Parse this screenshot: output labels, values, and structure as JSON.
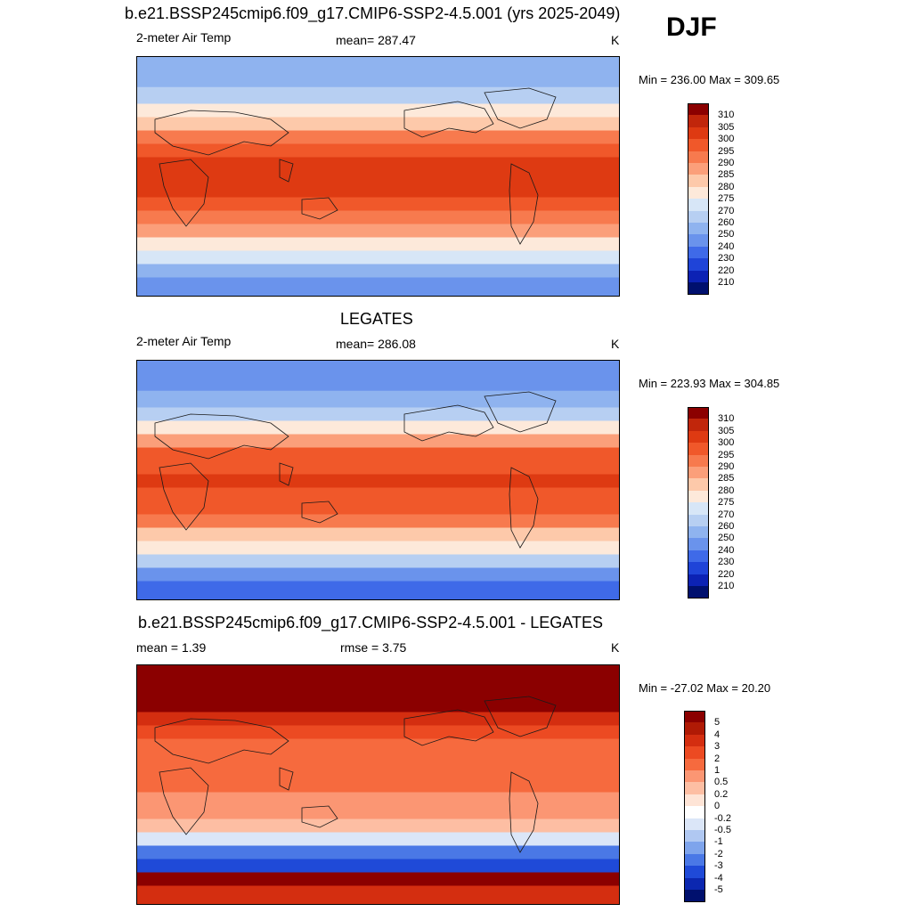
{
  "season": "DJF",
  "panels": [
    {
      "title": "b.e21.BSSP245cmip6.f09_g17.CMIP6-SSP2-4.5.001 (yrs 2025-2049)",
      "left_label": "2-meter Air Temp",
      "center_label": "mean= 287.47",
      "right_label": "K",
      "minmax": "Min = 236.00 Max = 309.65"
    },
    {
      "title": "LEGATES",
      "left_label": "2-meter Air Temp",
      "center_label": "mean= 286.08",
      "right_label": "K",
      "minmax": "Min = 223.93 Max = 304.85"
    },
    {
      "title": "b.e21.BSSP245cmip6.f09_g17.CMIP6-SSP2-4.5.001 - LEGATES",
      "left_label": "mean =   1.39",
      "center_label": "rmse =   3.75",
      "right_label": "K",
      "minmax": "Min = -27.02 Max =  20.20"
    }
  ],
  "chart_data": [
    {
      "type": "heatmap",
      "title": "b.e21.BSSP245cmip6.f09_g17.CMIP6-SSP2-4.5.001 (yrs 2025-2049)",
      "variable": "2-meter Air Temp",
      "units": "K",
      "mean": 287.47,
      "min": 236.0,
      "max": 309.65,
      "colorbar_levels": [
        "310",
        "305",
        "300",
        "295",
        "290",
        "285",
        "280",
        "275",
        "270",
        "260",
        "250",
        "240",
        "230",
        "220",
        "210"
      ],
      "colorbar_colors": [
        "#8b0000",
        "#c1260b",
        "#de3a12",
        "#f0582a",
        "#f77a4e",
        "#fb9f7a",
        "#fdc9aa",
        "#fde9da",
        "#d7e6f7",
        "#b7cff2",
        "#8fb3ef",
        "#6a93ec",
        "#3f6ae8",
        "#1f44d8",
        "#0c22b4",
        "#00106e"
      ],
      "latitude_bands": [
        {
          "lat": 75,
          "value": 258
        },
        {
          "lat": 60,
          "value": 266
        },
        {
          "lat": 50,
          "value": 275
        },
        {
          "lat": 40,
          "value": 282
        },
        {
          "lat": 30,
          "value": 291
        },
        {
          "lat": 20,
          "value": 297
        },
        {
          "lat": 10,
          "value": 300
        },
        {
          "lat": 0,
          "value": 301
        },
        {
          "lat": -10,
          "value": 300
        },
        {
          "lat": -20,
          "value": 297
        },
        {
          "lat": -30,
          "value": 292
        },
        {
          "lat": -40,
          "value": 285
        },
        {
          "lat": -50,
          "value": 277
        },
        {
          "lat": -60,
          "value": 270
        },
        {
          "lat": -70,
          "value": 252
        },
        {
          "lat": -80,
          "value": 242
        }
      ]
    },
    {
      "type": "heatmap",
      "title": "LEGATES",
      "variable": "2-meter Air Temp",
      "units": "K",
      "mean": 286.08,
      "min": 223.93,
      "max": 304.85,
      "colorbar_levels": [
        "310",
        "305",
        "300",
        "295",
        "290",
        "285",
        "280",
        "275",
        "270",
        "260",
        "250",
        "240",
        "230",
        "220",
        "210"
      ],
      "colorbar_colors": [
        "#8b0000",
        "#c1260b",
        "#de3a12",
        "#f0582a",
        "#f77a4e",
        "#fb9f7a",
        "#fdc9aa",
        "#fde9da",
        "#d7e6f7",
        "#b7cff2",
        "#8fb3ef",
        "#6a93ec",
        "#3f6ae8",
        "#1f44d8",
        "#0c22b4",
        "#00106e"
      ],
      "latitude_bands": [
        {
          "lat": 75,
          "value": 248
        },
        {
          "lat": 60,
          "value": 258
        },
        {
          "lat": 50,
          "value": 268
        },
        {
          "lat": 40,
          "value": 278
        },
        {
          "lat": 30,
          "value": 289
        },
        {
          "lat": 20,
          "value": 296
        },
        {
          "lat": 10,
          "value": 299
        },
        {
          "lat": 0,
          "value": 300
        },
        {
          "lat": -10,
          "value": 299
        },
        {
          "lat": -20,
          "value": 296
        },
        {
          "lat": -30,
          "value": 291
        },
        {
          "lat": -40,
          "value": 284
        },
        {
          "lat": -50,
          "value": 276
        },
        {
          "lat": -60,
          "value": 268
        },
        {
          "lat": -70,
          "value": 248
        },
        {
          "lat": -80,
          "value": 235
        }
      ]
    },
    {
      "type": "heatmap",
      "title": "b.e21.BSSP245cmip6.f09_g17.CMIP6-SSP2-4.5.001 - LEGATES",
      "units": "K",
      "mean": 1.39,
      "rmse": 3.75,
      "min": -27.02,
      "max": 20.2,
      "colorbar_levels": [
        "5",
        "4",
        "3",
        "2",
        "1",
        "0.5",
        "0.2",
        "0",
        "-0.2",
        "-0.5",
        "-1",
        "-2",
        "-3",
        "-4",
        "-5"
      ],
      "colorbar_colors": [
        "#8b0000",
        "#b01a05",
        "#d42e10",
        "#ec4a22",
        "#f66a3e",
        "#fb9673",
        "#fdbea3",
        "#fee4d6",
        "#ffffff",
        "#dbe6f8",
        "#b0c8f2",
        "#7ea4ec",
        "#4a78e6",
        "#1f4ad8",
        "#0b27b0",
        "#00106e"
      ],
      "latitude_bands": [
        {
          "lat": 75,
          "value": 6
        },
        {
          "lat": 60,
          "value": 5
        },
        {
          "lat": 50,
          "value": 3
        },
        {
          "lat": 40,
          "value": 2
        },
        {
          "lat": 30,
          "value": 1.5
        },
        {
          "lat": 20,
          "value": 1
        },
        {
          "lat": 10,
          "value": 1
        },
        {
          "lat": 0,
          "value": 1.2
        },
        {
          "lat": -10,
          "value": 0.8
        },
        {
          "lat": -20,
          "value": 0.5
        },
        {
          "lat": -30,
          "value": 0.3
        },
        {
          "lat": -40,
          "value": -0.5
        },
        {
          "lat": -50,
          "value": -3
        },
        {
          "lat": -60,
          "value": -4
        },
        {
          "lat": -70,
          "value": 6
        },
        {
          "lat": -80,
          "value": 3
        }
      ]
    }
  ]
}
